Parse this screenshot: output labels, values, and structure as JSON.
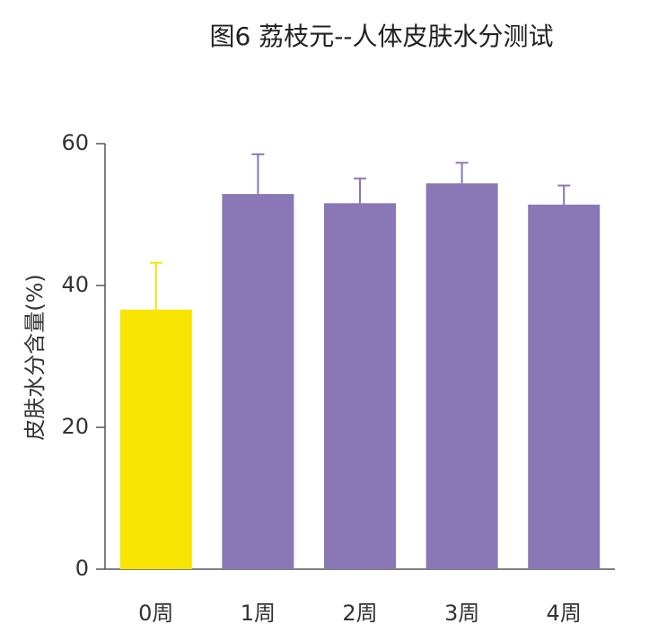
{
  "chart_data": {
    "type": "bar",
    "title": "图6 荔枝元--人体皮肤水分测试",
    "y_label": "皮肤水分含量(%)",
    "categories": [
      "0周",
      "1周",
      "2周",
      "3周",
      "4周"
    ],
    "values": [
      36.6,
      52.9,
      51.6,
      54.4,
      51.4
    ],
    "errors": [
      6.6,
      5.6,
      3.5,
      2.9,
      2.7
    ],
    "colors": [
      "#f7e400",
      "#8a77b5",
      "#8a77b5",
      "#8a77b5",
      "#8a77b5"
    ],
    "ylim": [
      0,
      60
    ],
    "yticks": [
      0,
      20,
      40,
      60
    ],
    "grid": false
  }
}
